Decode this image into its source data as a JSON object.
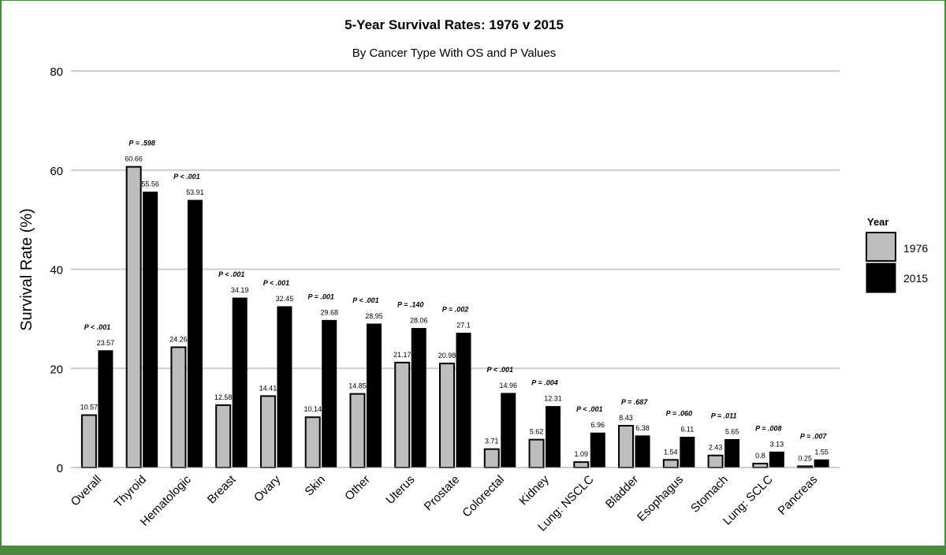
{
  "colors": {
    "series_1976": "#bdbdbd",
    "series_2015": "#000000",
    "gridline": "#cccccc",
    "frame": "#4a8a3f"
  },
  "chart_data": {
    "type": "bar",
    "title": "5-Year Survival Rates: 1976 v 2015",
    "subtitle": "By Cancer Type With OS and P Values",
    "xlabel": "",
    "ylabel": "Survival Rate (%)",
    "ylim": [
      0,
      80
    ],
    "yticks": [
      "0",
      "20",
      "40",
      "60",
      "80"
    ],
    "grid": true,
    "legend_title": "Year",
    "legend_position": "right",
    "categories": [
      "Overall",
      "Thyroid",
      "Hematologic",
      "Breast",
      "Ovary",
      "Skin",
      "Other",
      "Uterus",
      "Prostate",
      "Colorectal",
      "Kidney",
      "Lung: NSCLC",
      "Bladder",
      "Esophagus",
      "Stomach",
      "Lung: SCLC",
      "Pancreas"
    ],
    "series": [
      {
        "name": "1976",
        "values": [
          10.57,
          60.66,
          24.26,
          12.58,
          14.41,
          10.14,
          14.85,
          21.17,
          20.98,
          3.71,
          5.62,
          1.09,
          8.43,
          1.54,
          2.43,
          0.8,
          0.25
        ]
      },
      {
        "name": "2015",
        "values": [
          23.57,
          55.56,
          53.91,
          34.19,
          32.45,
          29.68,
          28.95,
          28.06,
          27.1,
          14.96,
          12.31,
          6.96,
          6.38,
          6.11,
          5.65,
          3.13,
          1.55
        ]
      }
    ],
    "p_values": [
      "P < .001",
      "P = .598",
      "P < .001",
      "P < .001",
      "P < .001",
      "P = .001",
      "P < .001",
      "P = .140",
      "P = .002",
      "P < .001",
      "P = .004",
      "P < .001",
      "P = .687",
      "P = .060",
      "P = .011",
      "P = .008",
      "P = .007"
    ]
  }
}
